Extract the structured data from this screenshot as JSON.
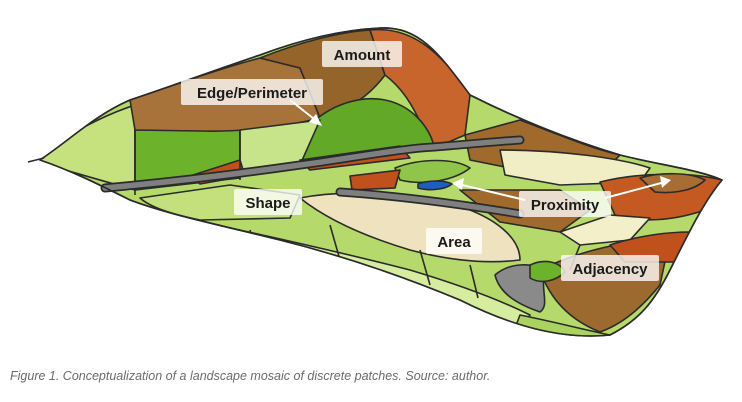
{
  "labels": {
    "amount": "Amount",
    "edge_perimeter": "Edge/Perimeter",
    "shape": "Shape",
    "area": "Area",
    "proximity": "Proximity",
    "adjacency": "Adjacency"
  },
  "caption": "Figure 1. Conceptualization of a landscape mosaic of discrete patches. Source: author.",
  "colors": {
    "light_green": "#b5d96a",
    "green": "#6cb22b",
    "brown": "#9c6a2e",
    "rust": "#c0501c",
    "cream": "#f3efc9",
    "gray": "#8a8a8a",
    "blue": "#1d5fc0"
  }
}
